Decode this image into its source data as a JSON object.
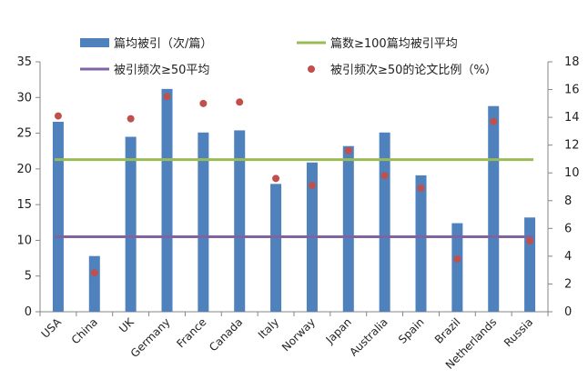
{
  "chart_data": {
    "type": "bar",
    "categories": [
      "USA",
      "China",
      "UK",
      "Germany",
      "France",
      "Canada",
      "Italy",
      "Norway",
      "Japan",
      "Australia",
      "Spain",
      "Brazil",
      "Netherlands",
      "Russia"
    ],
    "series": [
      {
        "name": "篇均被引（次/篇）",
        "type": "bar",
        "axis": "left",
        "color": "#4f81bd",
        "values": [
          26.6,
          7.8,
          24.5,
          31.2,
          25.1,
          25.4,
          17.9,
          20.9,
          23.2,
          25.1,
          19.1,
          12.4,
          28.8,
          13.2
        ]
      },
      {
        "name": "篇数≥100篇均被引平均",
        "type": "line",
        "axis": "left",
        "color": "#9bbb59",
        "values": [
          21.3,
          21.3,
          21.3,
          21.3,
          21.3,
          21.3,
          21.3,
          21.3,
          21.3,
          21.3,
          21.3,
          21.3,
          21.3,
          21.3
        ]
      },
      {
        "name": "被引频次≥50平均",
        "type": "line",
        "axis": "left",
        "color": "#8064a2",
        "values": [
          10.5,
          10.5,
          10.5,
          10.5,
          10.5,
          10.5,
          10.5,
          10.5,
          10.5,
          10.5,
          10.5,
          10.5,
          10.5,
          10.5
        ]
      },
      {
        "name": "被引频次≥50的论文比例（%）",
        "type": "scatter",
        "axis": "right",
        "color": "#c0504d",
        "values": [
          14.1,
          2.8,
          13.9,
          15.5,
          15.0,
          15.1,
          9.6,
          9.1,
          11.6,
          9.8,
          8.9,
          3.8,
          13.7,
          5.1
        ]
      }
    ],
    "y_left": {
      "min": 0,
      "max": 35,
      "ticks": [
        0,
        5,
        10,
        15,
        20,
        25,
        30,
        35
      ]
    },
    "y_right": {
      "min": 0,
      "max": 18,
      "ticks": [
        0,
        2,
        4,
        6,
        8,
        10,
        12,
        14,
        16,
        18
      ]
    },
    "title": "",
    "xlabel": "",
    "ylabel": "",
    "legend_position": "top"
  }
}
